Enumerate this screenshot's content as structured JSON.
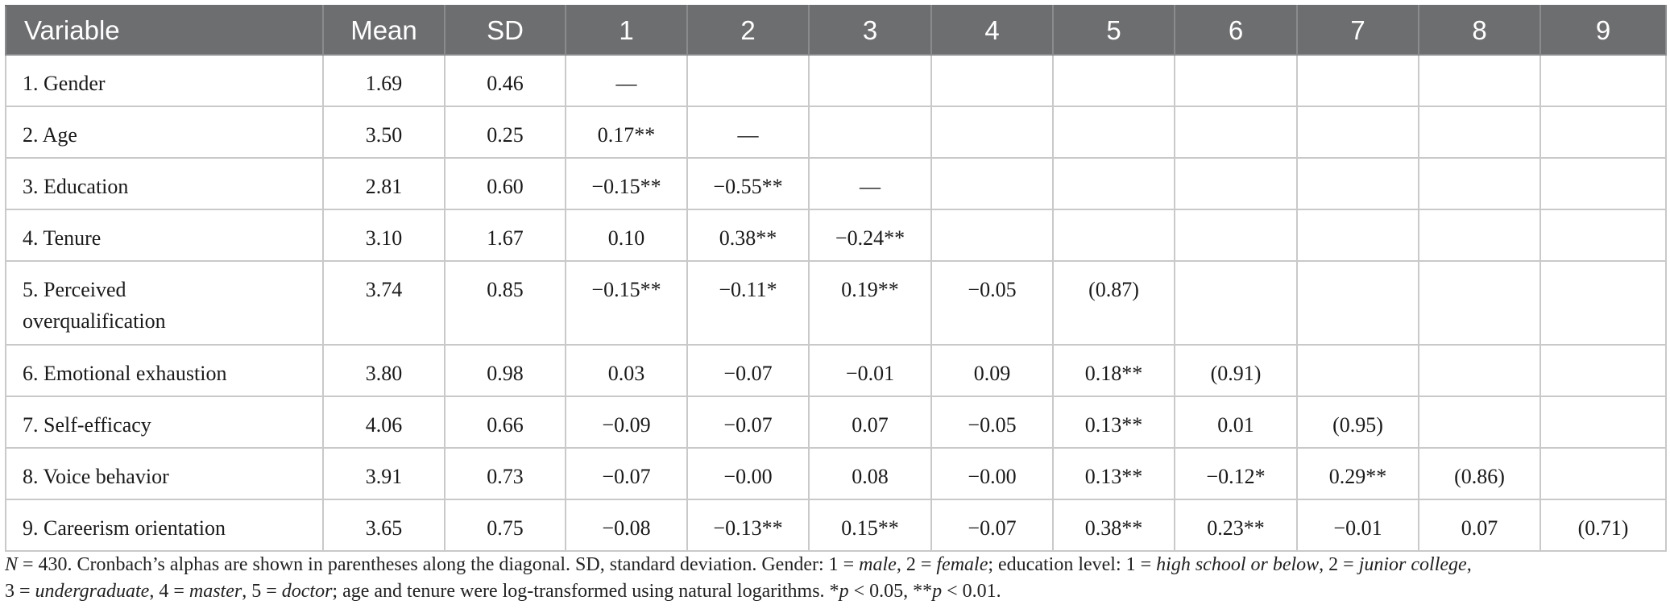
{
  "table": {
    "headers": [
      "Variable",
      "Mean",
      "SD",
      "1",
      "2",
      "3",
      "4",
      "5",
      "6",
      "7",
      "8",
      "9"
    ],
    "rows": [
      {
        "variable": "1. Gender",
        "mean": "1.69",
        "sd": "0.46",
        "cells": [
          "—",
          "",
          "",
          "",
          "",
          "",
          "",
          "",
          ""
        ]
      },
      {
        "variable": "2. Age",
        "mean": "3.50",
        "sd": "0.25",
        "cells": [
          "0.17**",
          "—",
          "",
          "",
          "",
          "",
          "",
          "",
          ""
        ]
      },
      {
        "variable": "3. Education",
        "mean": "2.81",
        "sd": "0.60",
        "cells": [
          "−0.15**",
          "−0.55**",
          "—",
          "",
          "",
          "",
          "",
          "",
          ""
        ]
      },
      {
        "variable": "4. Tenure",
        "mean": "3.10",
        "sd": "1.67",
        "cells": [
          "0.10",
          "0.38**",
          "−0.24**",
          "",
          "",
          "",
          "",
          "",
          ""
        ]
      },
      {
        "variable": "5. Perceived overqualification",
        "mean": "3.74",
        "sd": "0.85",
        "cells": [
          "−0.15**",
          "−0.11*",
          "0.19**",
          "−0.05",
          "(0.87)",
          "",
          "",
          "",
          ""
        ]
      },
      {
        "variable": "6. Emotional exhaustion",
        "mean": "3.80",
        "sd": "0.98",
        "cells": [
          "0.03",
          "−0.07",
          "−0.01",
          "0.09",
          "0.18**",
          "(0.91)",
          "",
          "",
          ""
        ]
      },
      {
        "variable": "7. Self-efficacy",
        "mean": "4.06",
        "sd": "0.66",
        "cells": [
          "−0.09",
          "−0.07",
          "0.07",
          "−0.05",
          "0.13**",
          "0.01",
          "(0.95)",
          "",
          ""
        ]
      },
      {
        "variable": "8. Voice behavior",
        "mean": "3.91",
        "sd": "0.73",
        "cells": [
          "−0.07",
          "−0.00",
          "0.08",
          "−0.00",
          "0.13**",
          "−0.12*",
          "0.29**",
          "(0.86)",
          ""
        ]
      },
      {
        "variable": "9. Careerism orientation",
        "mean": "3.65",
        "sd": "0.75",
        "cells": [
          "−0.08",
          "−0.13**",
          "0.15**",
          "−0.07",
          "0.38**",
          "0.23**",
          "−0.01",
          "0.07",
          "(0.71)"
        ]
      }
    ]
  },
  "note": {
    "n_label": "N",
    "n_text": " = 430. Cronbach’s alphas are shown in parentheses along the diagonal. SD, standard deviation. Gender: 1 = ",
    "male": "male",
    "sep_female": ", 2 = ",
    "female": "female",
    "edu_text": "; education level: 1 = ",
    "high_school": "high school or below",
    "sep_junior": ", 2 = ",
    "junior_college": "junior college",
    "line2_start": "3 = ",
    "undergraduate": "undergraduate",
    "sep_master": ", 4 = ",
    "master": "master",
    "sep_doctor": ", 5 = ",
    "doctor": "doctor",
    "log_text": "; age and tenure were log-transformed using natural logarithms. *",
    "p1": "p",
    "p1_text": " < 0.05, **",
    "p2": "p",
    "p2_text": " < 0.01."
  },
  "colors": {
    "header_bg": "#6d6e70",
    "header_text": "#ffffff",
    "grid_line": "#c9c9c9"
  }
}
